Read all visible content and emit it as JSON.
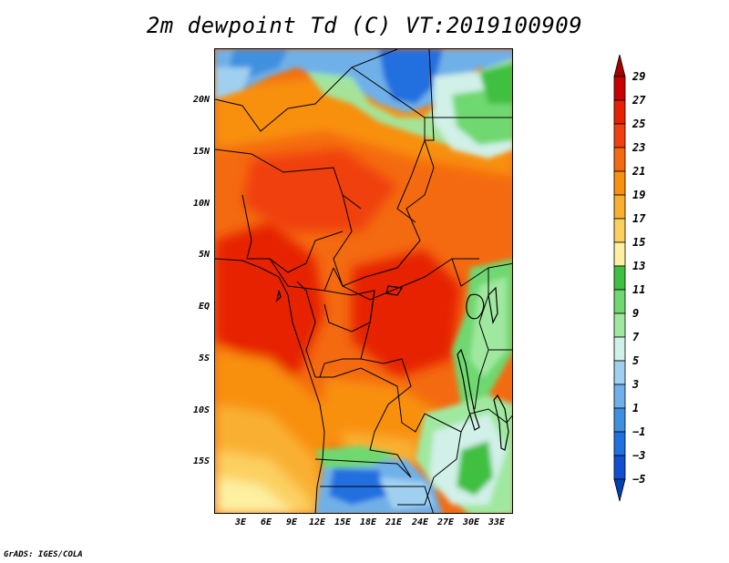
{
  "title": "2m dewpoint Td (C) VT:2019100909",
  "credit": "GrADS: IGES/COLA",
  "y_axis_labels": [
    "20N",
    "15N",
    "10N",
    "5N",
    "EQ",
    "5S",
    "10S",
    "15S"
  ],
  "x_axis_labels": [
    "3E",
    "6E",
    "9E",
    "12E",
    "15E",
    "18E",
    "21E",
    "24E",
    "27E",
    "30E",
    "33E"
  ],
  "colorbar": {
    "labels": [
      "29",
      "27",
      "25",
      "23",
      "21",
      "19",
      "17",
      "15",
      "13",
      "11",
      "9",
      "7",
      "5",
      "3",
      "1",
      "−1",
      "−3",
      "−5"
    ],
    "colors": [
      "#a50000",
      "#c80000",
      "#e62000",
      "#f04010",
      "#f46a10",
      "#f89010",
      "#f9b030",
      "#fbd060",
      "#fdf0a0",
      "#40c040",
      "#70d870",
      "#a0e8a0",
      "#d0f0e8",
      "#a0d0f0",
      "#70b0e8",
      "#4090e0",
      "#2070e0",
      "#1050d0",
      "#0040b0"
    ]
  },
  "map_region": {
    "lon_range_deg_e": [
      0,
      35
    ],
    "lat_range_deg": [
      -20,
      24
    ],
    "variable": "2m dewpoint",
    "units": "C",
    "valid_time": "2019100909"
  }
}
